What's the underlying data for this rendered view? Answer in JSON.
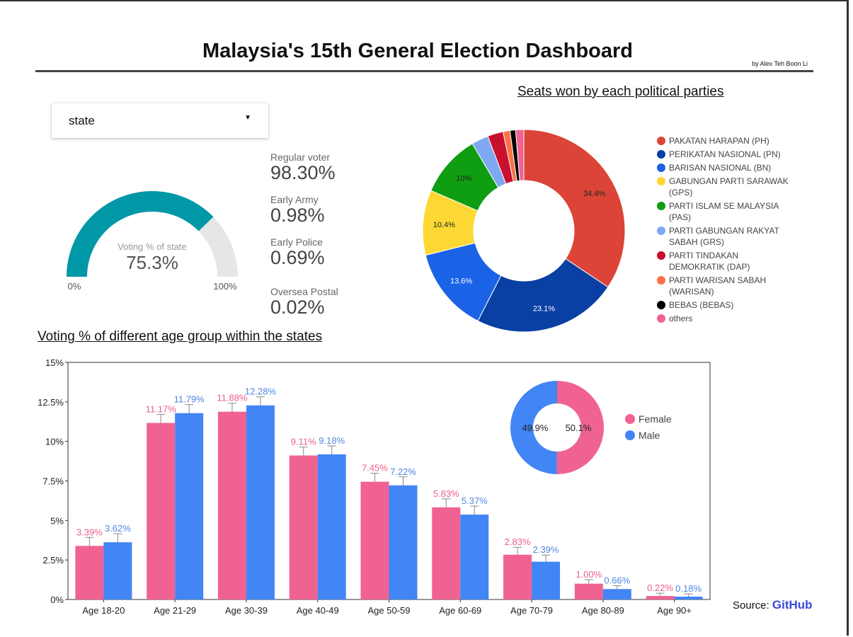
{
  "header": {
    "title": "Malaysia's 15th General Election Dashboard",
    "byline": "by Alex Teh Boon Li"
  },
  "filter": {
    "state_value": "state",
    "arrow_icon": "caret-down-icon"
  },
  "gauge": {
    "label": "Voting % of state",
    "value_text": "75.3%",
    "value": 75.3,
    "min_label": "0%",
    "max_label": "100%",
    "fill_color": "#0097a7",
    "track_color": "#e6e6e6"
  },
  "stats": [
    {
      "label": "Regular voter",
      "value": "98.30%"
    },
    {
      "label": "Early Army",
      "value": "0.98%"
    },
    {
      "label": "Early Police",
      "value": "0.69%"
    },
    {
      "label": "Oversea Postal",
      "value": "0.02%"
    }
  ],
  "sections": {
    "pie_title": "Seats won by each political parties",
    "bar_title": "Voting % of different age group within the states"
  },
  "source": {
    "prefix": "Source: ",
    "link": "GitHub"
  },
  "chart_data": [
    {
      "type": "pie",
      "donut": true,
      "title": "Seats won by each political parties",
      "legend_position": "right",
      "slices": [
        {
          "label": "PAKATAN HARAPAN (PH)",
          "value": 34.4,
          "color": "#db4437",
          "data_label": "34.4%"
        },
        {
          "label": "PERIKATAN NASIONAL (PN)",
          "value": 23.1,
          "color": "#0a3fa3",
          "data_label": "23.1%"
        },
        {
          "label": "BARISAN NASIONAL (BN)",
          "value": 13.6,
          "color": "#1a62e6",
          "data_label": "13.6%"
        },
        {
          "label": "GABUNGAN PARTI SARAWAK (GPS)",
          "value": 10.4,
          "color": "#fdd835",
          "data_label": "10.4%"
        },
        {
          "label": "PARTI ISLAM SE MALAYSIA (PAS)",
          "value": 10.0,
          "color": "#0f9d12",
          "data_label": "10%"
        },
        {
          "label": "PARTI GABUNGAN RAKYAT SABAH (GRS)",
          "value": 2.7,
          "color": "#7fa8f2",
          "data_label": ""
        },
        {
          "label": "PARTI TINDAKAN DEMOKRATIK (DAP)",
          "value": 2.5,
          "color": "#c8102e",
          "data_label": ""
        },
        {
          "label": "PARTI WARISAN SABAH (WARISAN)",
          "value": 1.1,
          "color": "#ff7043",
          "data_label": ""
        },
        {
          "label": "BEBAS (BEBAS)",
          "value": 0.9,
          "color": "#000000",
          "data_label": ""
        },
        {
          "label": "others",
          "value": 1.3,
          "color": "#f06292",
          "data_label": ""
        }
      ],
      "legend_lines": [
        [
          "PAKATAN HARAPAN (PH)"
        ],
        [
          "PERIKATAN NASIONAL (PN)"
        ],
        [
          "BARISAN NASIONAL (BN)"
        ],
        [
          "GABUNGAN PARTI SARAWAK",
          "(GPS)"
        ],
        [
          "PARTI ISLAM SE MALAYSIA",
          "(PAS)"
        ],
        [
          "PARTI GABUNGAN RAKYAT",
          "SABAH (GRS)"
        ],
        [
          "PARTI TINDAKAN",
          "DEMOKRATIK (DAP)"
        ],
        [
          "PARTI WARISAN SABAH",
          "(WARISAN)"
        ],
        [
          "BEBAS (BEBAS)"
        ],
        [
          "others"
        ]
      ]
    },
    {
      "type": "bar",
      "title": "Voting % of different age group within the states",
      "categories": [
        "Age 18-20",
        "Age 21-29",
        "Age 30-39",
        "Age 40-49",
        "Age 50-59",
        "Age 60-69",
        "Age 70-79",
        "Age 80-89",
        "Age 90+"
      ],
      "series": [
        {
          "name": "Female",
          "color": "#f06292",
          "label_color": "#e8608f",
          "values": [
            3.39,
            11.17,
            11.88,
            9.11,
            7.45,
            5.83,
            2.83,
            1.0,
            0.22
          ],
          "labels": [
            "3.39%",
            "11.17%",
            "11.88%",
            "9.11%",
            "7.45%",
            "5.83%",
            "2.83%",
            "1.00%",
            "0.22%"
          ]
        },
        {
          "name": "Male",
          "color": "#4285f4",
          "label_color": "#4f86e0",
          "values": [
            3.62,
            11.79,
            12.28,
            9.18,
            7.22,
            5.37,
            2.39,
            0.66,
            0.18
          ],
          "labels": [
            "3.62%",
            "11.79%",
            "12.28%",
            "9.18%",
            "7.22%",
            "5.37%",
            "2.39%",
            "0.66%",
            "0.18%"
          ]
        }
      ],
      "ylim": [
        0,
        15
      ],
      "yticks": [
        0,
        2.5,
        5,
        7.5,
        10,
        12.5,
        15
      ],
      "ytick_labels": [
        "0%",
        "2.5%",
        "5%",
        "7.5%",
        "10%",
        "12.5%",
        "15%"
      ],
      "grid": false,
      "error_bars": true
    },
    {
      "type": "pie",
      "donut": true,
      "title": "",
      "legend_position": "right",
      "slices": [
        {
          "label": "Female",
          "value": 50.1,
          "color": "#f06292",
          "data_label": "50.1%"
        },
        {
          "label": "Male",
          "value": 49.9,
          "color": "#4285f4",
          "data_label": "49.9%"
        }
      ]
    }
  ]
}
